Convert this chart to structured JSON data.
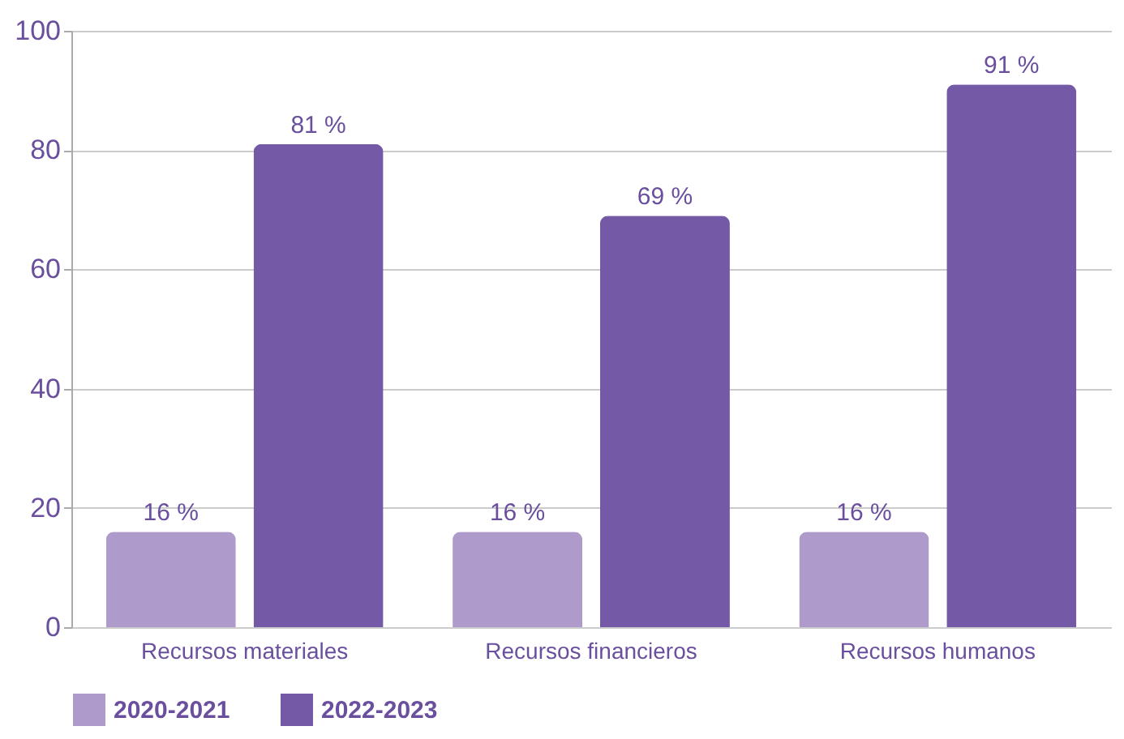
{
  "chart_data": {
    "type": "bar",
    "categories": [
      "Recursos materiales",
      "Recursos financieros",
      "Recursos humanos"
    ],
    "series": [
      {
        "name": "2020-2021",
        "color": "#ae9bcb",
        "values": [
          16,
          16,
          16
        ],
        "value_labels": [
          "16 %",
          "16 %",
          "16 %"
        ]
      },
      {
        "name": "2022-2023",
        "color": "#7459a6",
        "values": [
          81,
          69,
          91
        ],
        "value_labels": [
          "81 %",
          "69 %",
          "91 %"
        ]
      }
    ],
    "ylim": [
      0,
      100
    ],
    "yticks": [
      0,
      20,
      40,
      60,
      80,
      100
    ],
    "grid": "y",
    "legend": "bottom"
  }
}
